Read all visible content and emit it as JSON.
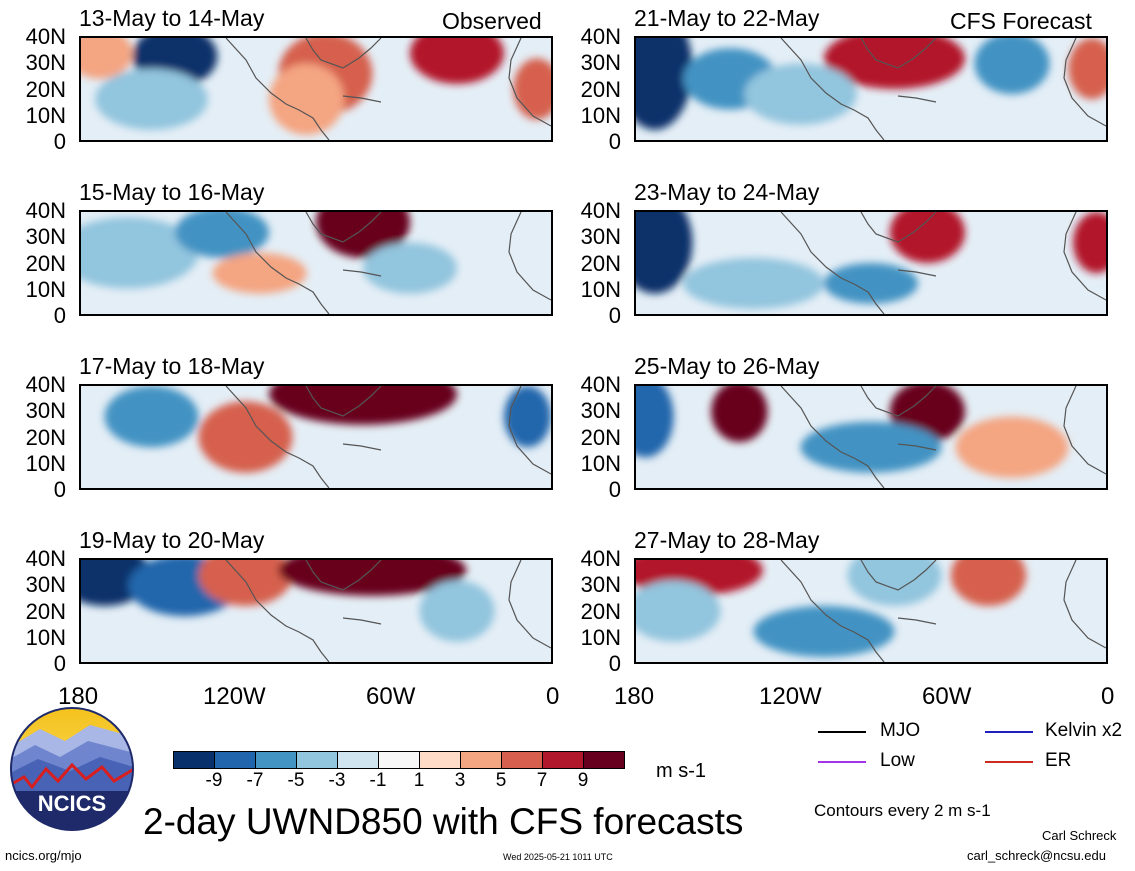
{
  "left_column_tag": "Observed",
  "right_column_tag": "CFS Forecast",
  "panels": [
    {
      "title": "13-May to 14-May"
    },
    {
      "title": "21-May to 22-May"
    },
    {
      "title": "15-May to 16-May"
    },
    {
      "title": "23-May to 24-May"
    },
    {
      "title": "17-May to 18-May"
    },
    {
      "title": "25-May to 26-May"
    },
    {
      "title": "19-May to 20-May"
    },
    {
      "title": "27-May to 28-May"
    }
  ],
  "lat_labels": [
    "40N",
    "30N",
    "20N",
    "10N",
    "0"
  ],
  "lon_labels": [
    "180",
    "120W",
    "60W",
    "0"
  ],
  "colorbar": {
    "labels": [
      "-9",
      "-7",
      "-5",
      "-3",
      "-1",
      "1",
      "3",
      "5",
      "7",
      "9"
    ],
    "colors": [
      "#08306b",
      "#2166ac",
      "#4393c3",
      "#92c5de",
      "#d1e5f0",
      "#f7f7f7",
      "#fddbc7",
      "#f4a582",
      "#d6604d",
      "#b2182b",
      "#67001f"
    ],
    "units": "m s-1"
  },
  "legend": [
    {
      "label": "MJO",
      "color": "#000000"
    },
    {
      "label": "Kelvin x2",
      "color": "#1f1fbf"
    },
    {
      "label": "Low",
      "color": "#a633e6"
    },
    {
      "label": "ER",
      "color": "#cc2a1e"
    }
  ],
  "contour_note": "Contours every 2 m s-1",
  "main_title": "2-day UWND850 with CFS forecasts",
  "logo_text": "NCICS",
  "url": "ncics.org/mjo",
  "timestamp": "Wed 2025-05-21 1011 UTC",
  "author": "Carl Schreck",
  "email": "carl_schreck@ncsu.edu"
}
